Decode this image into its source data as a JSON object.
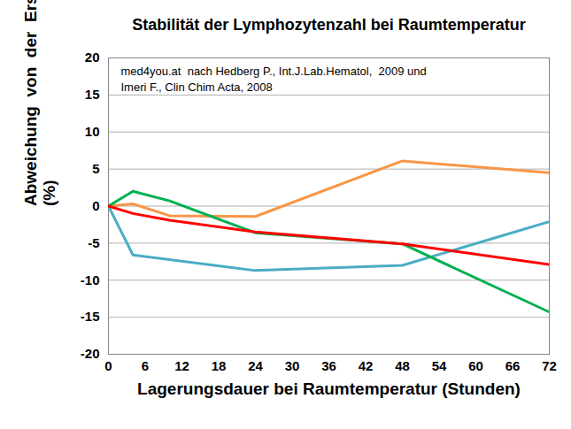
{
  "chart_data": {
    "type": "line",
    "title": "Stabilität der Lymphozytenzahl bei Raumtemperatur",
    "annotation": [
      "med4you.at  nach Hedberg P., Int.J.Lab.Hematol,  2009 und",
      "Imeri F., Clin Chim Acta, 2008"
    ],
    "x_label": "Lagerungsdauer bei Raumtemperatur (Stunden)",
    "y_label": "Abweichung  von  der  Erstmessung (%)",
    "series": [
      {
        "color": "#f79646",
        "x": [
          0,
          4,
          10,
          24,
          48,
          72
        ],
        "values": [
          0,
          0.3,
          -1.3,
          -1.4,
          6.1,
          4.5
        ]
      },
      {
        "color": "#4bacc6",
        "x": [
          0,
          4,
          24,
          48,
          72
        ],
        "values": [
          0,
          -6.6,
          -8.7,
          -8.0,
          -2.1
        ]
      },
      {
        "color": "#00b050",
        "x": [
          0,
          4,
          10,
          24,
          48,
          72
        ],
        "values": [
          0,
          2.0,
          0.7,
          -3.6,
          -5.1,
          -14.3
        ]
      },
      {
        "color": "#ff0000",
        "x": [
          0,
          4,
          10,
          24,
          48,
          72
        ],
        "values": [
          0,
          -1.0,
          -1.9,
          -3.5,
          -5.1,
          -7.9
        ]
      }
    ],
    "xlim": [
      0,
      72
    ],
    "xticks": [
      0,
      6,
      12,
      18,
      24,
      30,
      36,
      42,
      48,
      54,
      60,
      66,
      72
    ],
    "ylim": [
      -20,
      20
    ],
    "yticks": [
      -20,
      -15,
      -10,
      -5,
      0,
      5,
      10,
      15,
      20
    ],
    "grid": true
  }
}
